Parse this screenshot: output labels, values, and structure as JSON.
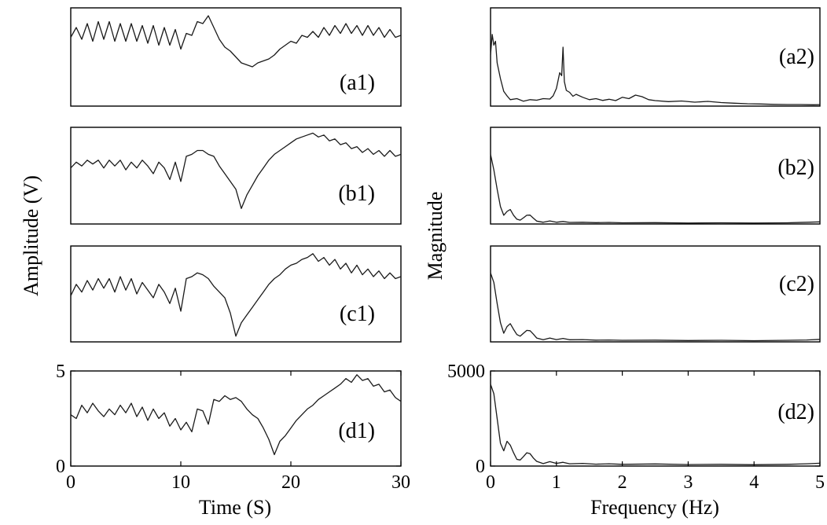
{
  "chart_data": [
    {
      "type": "line",
      "panel": "a1",
      "label": "(a1)",
      "x": [
        0,
        0.5,
        1,
        1.5,
        2,
        2.5,
        3,
        3.5,
        4,
        4.5,
        5,
        5.5,
        6,
        6.5,
        7,
        7.5,
        8,
        8.5,
        9,
        9.5,
        10,
        10.5,
        11,
        11.5,
        12,
        12.5,
        13,
        13.5,
        14,
        14.5,
        15,
        15.5,
        16,
        16.5,
        17,
        17.5,
        18,
        18.5,
        19,
        19.5,
        20,
        20.5,
        21,
        21.5,
        22,
        22.5,
        23,
        23.5,
        24,
        24.5,
        25,
        25.5,
        26,
        26.5,
        27,
        27.5,
        28,
        28.5,
        29,
        29.5,
        30
      ],
      "y": [
        3.5,
        4.0,
        3.4,
        4.2,
        3.3,
        4.3,
        3.4,
        4.3,
        3.3,
        4.2,
        3.3,
        4.2,
        3.3,
        4.1,
        3.2,
        4.1,
        3.1,
        4.0,
        3.1,
        3.9,
        2.9,
        3.7,
        3.6,
        4.3,
        4.2,
        4.6,
        4.0,
        3.4,
        3.0,
        2.8,
        2.5,
        2.2,
        2.1,
        2.0,
        2.2,
        2.3,
        2.4,
        2.6,
        2.9,
        3.1,
        3.3,
        3.2,
        3.6,
        3.5,
        3.8,
        3.5,
        4.0,
        3.6,
        4.1,
        3.7,
        4.2,
        3.7,
        4.1,
        3.6,
        4.1,
        3.6,
        4.0,
        3.5,
        3.9,
        3.5,
        3.6
      ]
    },
    {
      "type": "line",
      "panel": "b1",
      "label": "(b1)",
      "x": [
        0,
        0.5,
        1,
        1.5,
        2,
        2.5,
        3,
        3.5,
        4,
        4.5,
        5,
        5.5,
        6,
        6.5,
        7,
        7.5,
        8,
        8.5,
        9,
        9.5,
        10,
        10.5,
        11,
        11.5,
        12,
        12.5,
        13,
        13.5,
        14,
        14.5,
        15,
        15.5,
        16,
        16.5,
        17,
        17.5,
        18,
        18.5,
        19,
        19.5,
        20,
        20.5,
        21,
        21.5,
        22,
        22.5,
        23,
        23.5,
        24,
        24.5,
        25,
        25.5,
        26,
        26.5,
        27,
        27.5,
        28,
        28.5,
        29,
        29.5,
        30
      ],
      "y": [
        2.9,
        3.2,
        3.0,
        3.3,
        3.1,
        3.3,
        2.9,
        3.3,
        3.0,
        3.3,
        2.8,
        3.2,
        2.9,
        3.3,
        3.0,
        2.6,
        3.2,
        2.9,
        2.3,
        3.2,
        2.2,
        3.5,
        3.6,
        3.8,
        3.8,
        3.6,
        3.5,
        3.0,
        2.6,
        2.2,
        1.8,
        0.8,
        1.5,
        2.0,
        2.5,
        2.9,
        3.3,
        3.6,
        3.8,
        4.0,
        4.2,
        4.4,
        4.5,
        4.6,
        4.7,
        4.5,
        4.6,
        4.3,
        4.4,
        4.1,
        4.2,
        3.9,
        4.0,
        3.7,
        3.9,
        3.6,
        3.8,
        3.5,
        3.8,
        3.5,
        3.6
      ]
    },
    {
      "type": "line",
      "panel": "c1",
      "label": "(c1)",
      "x": [
        0,
        0.5,
        1,
        1.5,
        2,
        2.5,
        3,
        3.5,
        4,
        4.5,
        5,
        5.5,
        6,
        6.5,
        7,
        7.5,
        8,
        8.5,
        9,
        9.5,
        10,
        10.5,
        11,
        11.5,
        12,
        12.5,
        13,
        13.5,
        14,
        14.5,
        15,
        15.5,
        16,
        16.5,
        17,
        17.5,
        18,
        18.5,
        19,
        19.5,
        20,
        20.5,
        21,
        21.5,
        22,
        22.5,
        23,
        23.5,
        24,
        24.5,
        25,
        25.5,
        26,
        26.5,
        27,
        27.5,
        28,
        28.5,
        29,
        29.5,
        30
      ],
      "y": [
        2.4,
        3.0,
        2.6,
        3.2,
        2.7,
        3.3,
        2.8,
        3.3,
        2.6,
        3.4,
        2.7,
        3.3,
        2.5,
        3.1,
        2.7,
        2.3,
        3.0,
        2.6,
        2.0,
        2.8,
        1.6,
        3.3,
        3.4,
        3.6,
        3.5,
        3.3,
        2.9,
        2.6,
        2.3,
        1.5,
        0.3,
        1.0,
        1.4,
        1.8,
        2.2,
        2.6,
        3.0,
        3.3,
        3.5,
        3.8,
        4.0,
        4.1,
        4.3,
        4.4,
        4.6,
        4.2,
        4.4,
        4.0,
        4.3,
        3.8,
        4.1,
        3.6,
        4.0,
        3.5,
        3.8,
        3.4,
        3.7,
        3.3,
        3.6,
        3.3,
        3.4
      ]
    },
    {
      "type": "line",
      "panel": "d1",
      "label": "(d1)",
      "x": [
        0,
        0.5,
        1,
        1.5,
        2,
        2.5,
        3,
        3.5,
        4,
        4.5,
        5,
        5.5,
        6,
        6.5,
        7,
        7.5,
        8,
        8.5,
        9,
        9.5,
        10,
        10.5,
        11,
        11.5,
        12,
        12.5,
        13,
        13.5,
        14,
        14.5,
        15,
        15.5,
        16,
        16.5,
        17,
        17.5,
        18,
        18.5,
        19,
        19.5,
        20,
        20.5,
        21,
        21.5,
        22,
        22.5,
        23,
        23.5,
        24,
        24.5,
        25,
        25.5,
        26,
        26.5,
        27,
        27.5,
        28,
        28.5,
        29,
        29.5,
        30
      ],
      "y": [
        2.7,
        2.5,
        3.2,
        2.8,
        3.3,
        2.9,
        2.6,
        3.0,
        2.7,
        3.2,
        2.8,
        3.3,
        2.6,
        3.1,
        2.4,
        3.0,
        2.5,
        2.8,
        2.1,
        2.5,
        1.9,
        2.3,
        1.8,
        3.0,
        2.9,
        2.2,
        3.5,
        3.4,
        3.7,
        3.5,
        3.6,
        3.4,
        3.0,
        2.7,
        2.5,
        2.0,
        1.4,
        0.6,
        1.3,
        1.6,
        2.0,
        2.4,
        2.7,
        3.0,
        3.2,
        3.5,
        3.7,
        3.9,
        4.1,
        4.3,
        4.6,
        4.4,
        4.8,
        4.5,
        4.6,
        4.2,
        4.3,
        3.9,
        4.0,
        3.6,
        3.4
      ],
      "xlim": [
        0,
        30
      ],
      "ylim": [
        0,
        5
      ],
      "xticks": [
        0,
        10,
        20,
        30
      ],
      "yticks": [
        0,
        5
      ]
    },
    {
      "type": "line",
      "panel": "a2",
      "label": "(a2)",
      "x": [
        0,
        0.025,
        0.05,
        0.075,
        0.1,
        0.15,
        0.2,
        0.25,
        0.3,
        0.4,
        0.5,
        0.6,
        0.7,
        0.8,
        0.9,
        0.95,
        1.0,
        1.05,
        1.08,
        1.1,
        1.12,
        1.15,
        1.2,
        1.25,
        1.3,
        1.4,
        1.5,
        1.6,
        1.7,
        1.8,
        1.9,
        2.0,
        2.1,
        2.2,
        2.3,
        2.4,
        2.5,
        2.7,
        2.9,
        3.1,
        3.3,
        3.5,
        3.7,
        3.9,
        4.1,
        4.3,
        4.5,
        4.7,
        4.9,
        5.0
      ],
      "y": [
        2600,
        3650,
        3100,
        3300,
        2200,
        1400,
        750,
        520,
        330,
        380,
        250,
        330,
        300,
        380,
        360,
        520,
        900,
        1700,
        1550,
        3000,
        1250,
        800,
        700,
        500,
        600,
        450,
        330,
        380,
        290,
        350,
        280,
        450,
        380,
        560,
        480,
        330,
        280,
        230,
        260,
        200,
        240,
        180,
        150,
        120,
        110,
        90,
        80,
        80,
        70,
        75
      ]
    },
    {
      "type": "line",
      "panel": "b2",
      "label": "(b2)",
      "x": [
        0,
        0.05,
        0.1,
        0.15,
        0.2,
        0.25,
        0.3,
        0.35,
        0.4,
        0.45,
        0.5,
        0.55,
        0.6,
        0.65,
        0.7,
        0.8,
        0.9,
        1.0,
        1.1,
        1.2,
        1.4,
        1.6,
        1.8,
        2.0,
        2.5,
        3.0,
        3.5,
        4.0,
        4.5,
        4.8,
        5.0
      ],
      "y": [
        3600,
        2800,
        1800,
        900,
        450,
        650,
        750,
        450,
        250,
        200,
        320,
        450,
        460,
        300,
        150,
        90,
        160,
        90,
        130,
        80,
        90,
        70,
        80,
        60,
        70,
        50,
        60,
        50,
        60,
        90,
        110
      ]
    },
    {
      "type": "line",
      "panel": "c2",
      "label": "(c2)",
      "x": [
        0,
        0.05,
        0.1,
        0.15,
        0.2,
        0.25,
        0.3,
        0.35,
        0.4,
        0.45,
        0.5,
        0.55,
        0.6,
        0.65,
        0.7,
        0.8,
        0.9,
        1.0,
        1.1,
        1.2,
        1.4,
        1.6,
        1.8,
        2.0,
        2.5,
        3.0,
        3.5,
        4.0,
        4.5,
        4.8,
        5.0
      ],
      "y": [
        3600,
        3100,
        2000,
        1000,
        450,
        800,
        950,
        650,
        380,
        300,
        450,
        600,
        580,
        400,
        200,
        110,
        200,
        120,
        180,
        110,
        120,
        90,
        100,
        80,
        90,
        70,
        80,
        60,
        80,
        100,
        130
      ]
    },
    {
      "type": "line",
      "panel": "d2",
      "label": "(d2)",
      "x": [
        0,
        0.05,
        0.1,
        0.15,
        0.2,
        0.25,
        0.3,
        0.35,
        0.4,
        0.45,
        0.5,
        0.55,
        0.6,
        0.65,
        0.7,
        0.8,
        0.9,
        1.0,
        1.1,
        1.2,
        1.4,
        1.6,
        1.8,
        2.0,
        2.5,
        3.0,
        3.5,
        4.0,
        4.5,
        4.8,
        5.0
      ],
      "y": [
        4300,
        3800,
        2500,
        1200,
        800,
        1300,
        1100,
        700,
        350,
        320,
        500,
        700,
        650,
        420,
        250,
        130,
        230,
        140,
        200,
        120,
        140,
        100,
        120,
        90,
        110,
        80,
        90,
        70,
        90,
        120,
        150
      ],
      "xlim": [
        0,
        5
      ],
      "ylim": [
        0,
        5000
      ],
      "xticks": [
        0,
        1,
        2,
        3,
        4,
        5
      ],
      "yticks": [
        0,
        5000
      ]
    }
  ],
  "axes": {
    "left_ylabel": "Amplitude (V)",
    "right_ylabel": "Magnitude",
    "left_xlabel": "Time (S)",
    "right_xlabel": "Frequency (Hz)"
  },
  "style": {
    "line_color": "#1a1a1a",
    "frame_color": "#000000"
  }
}
